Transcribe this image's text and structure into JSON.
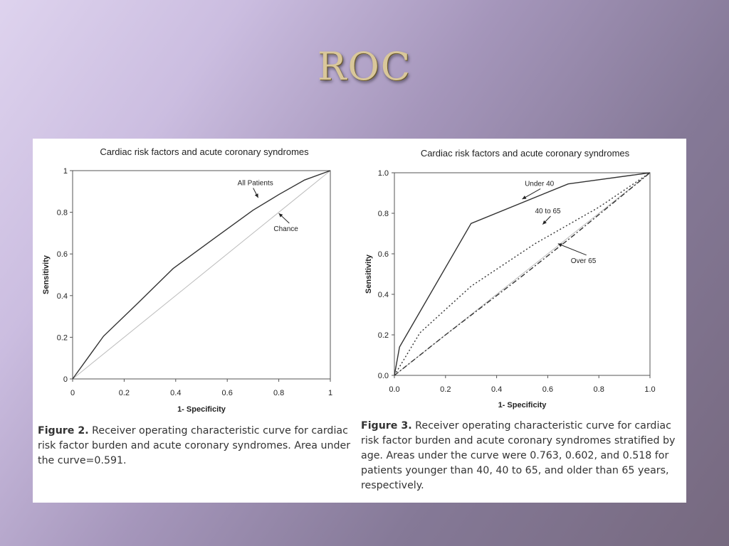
{
  "slide": {
    "title": "ROC"
  },
  "chart_data": [
    {
      "type": "line",
      "title": "Cardiac risk factors and acute coronary syndromes",
      "xlabel": "1- Specificity",
      "ylabel": "Sensitivity",
      "xlim": [
        0,
        1
      ],
      "ylim": [
        0,
        1
      ],
      "xticks": [
        "0",
        "0.2",
        "0.4",
        "0.6",
        "0.8",
        "1"
      ],
      "yticks": [
        "0",
        "0.2",
        "0.4",
        "0.6",
        "0.8",
        "1"
      ],
      "grid": false,
      "series": [
        {
          "name": "All Patients",
          "style": "solid",
          "color": "#333333",
          "x": [
            0,
            0.12,
            0.25,
            0.39,
            0.55,
            0.7,
            0.8,
            0.9,
            1.0
          ],
          "y": [
            0,
            0.205,
            0.36,
            0.53,
            0.675,
            0.81,
            0.885,
            0.955,
            1.0
          ]
        },
        {
          "name": "Chance",
          "style": "solid",
          "color": "#bbbbbb",
          "x": [
            0,
            1
          ],
          "y": [
            0,
            1
          ]
        }
      ],
      "annotations": [
        {
          "text": "All Patients",
          "at": [
            0.72,
            0.87
          ],
          "label_at": [
            0.64,
            0.93
          ]
        },
        {
          "text": "Chance",
          "at": [
            0.8,
            0.795
          ],
          "label_at": [
            0.78,
            0.71
          ]
        }
      ],
      "caption": {
        "label": "Figure 2.",
        "text": "Receiver operating characteristic curve for cardiac risk factor burden and acute coronary syndromes. Area under the curve=0.591."
      }
    },
    {
      "type": "line",
      "title": "Cardiac risk factors and acute coronary syndromes",
      "xlabel": "1- Specificity",
      "ylabel": "Sensitivity",
      "xlim": [
        0,
        1
      ],
      "ylim": [
        0,
        1
      ],
      "xticks": [
        "0.0",
        "0.2",
        "0.4",
        "0.6",
        "0.8",
        "1.0"
      ],
      "yticks": [
        "0.0",
        "0.2",
        "0.4",
        "0.6",
        "0.8",
        "1.0"
      ],
      "grid": false,
      "series": [
        {
          "name": "Under 40",
          "style": "solid",
          "color": "#333333",
          "x": [
            0,
            0.02,
            0.3,
            0.68,
            1.0
          ],
          "y": [
            0,
            0.14,
            0.75,
            0.945,
            1.0
          ]
        },
        {
          "name": "40 to 65",
          "style": "dotted",
          "color": "#333333",
          "x": [
            0,
            0.1,
            0.3,
            0.55,
            0.8,
            1.0
          ],
          "y": [
            0,
            0.21,
            0.44,
            0.65,
            0.83,
            1.0
          ]
        },
        {
          "name": "Over 65",
          "style": "dashdot",
          "color": "#333333",
          "x": [
            0,
            0.2,
            0.5,
            0.7,
            1.0
          ],
          "y": [
            0,
            0.2,
            0.49,
            0.69,
            1.0
          ]
        },
        {
          "name": "",
          "style": "solid",
          "color": "#bbbbbb",
          "x": [
            0,
            1
          ],
          "y": [
            0,
            1
          ]
        }
      ],
      "annotations": [
        {
          "text": "Under 40",
          "at": [
            0.5,
            0.87
          ],
          "label_at": [
            0.51,
            0.935
          ]
        },
        {
          "text": "40 to 65",
          "at": [
            0.58,
            0.745
          ],
          "label_at": [
            0.55,
            0.8
          ]
        },
        {
          "text": "Over 65",
          "at": [
            0.64,
            0.65
          ],
          "label_at": [
            0.69,
            0.555
          ]
        }
      ],
      "caption": {
        "label": "Figure 3.",
        "text": "Receiver operating characteristic curve for cardiac risk factor burden and acute coronary syndromes stratified by age. Areas under the curve were 0.763, 0.602, and 0.518 for patients younger than 40, 40 to 65, and older than 65 years, respectively."
      }
    }
  ]
}
